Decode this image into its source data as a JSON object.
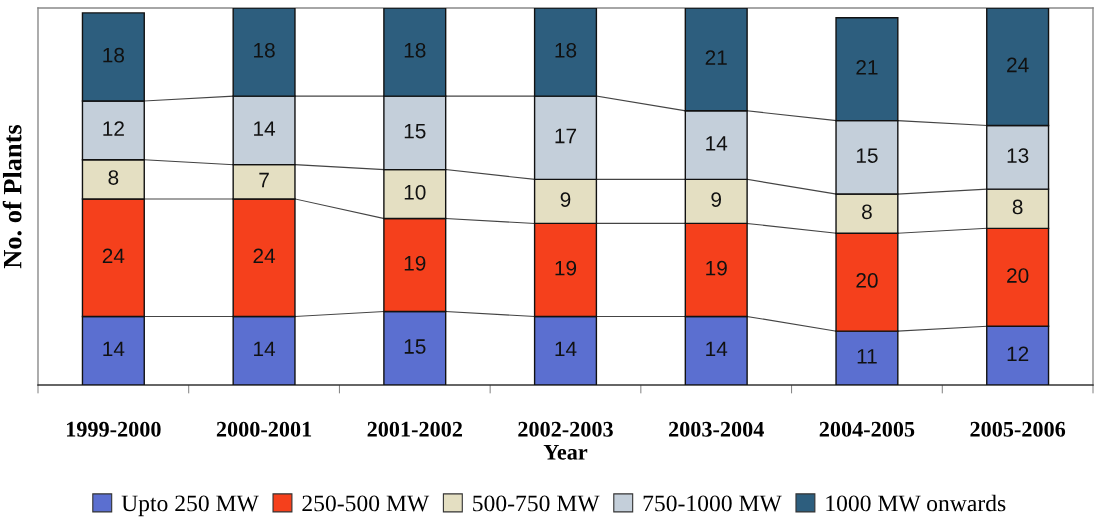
{
  "chart_data": {
    "type": "bar",
    "stacked": true,
    "xlabel": "Year",
    "ylabel": "No. of Plants",
    "categories": [
      "1999-2000",
      "2000-2001",
      "2001-2002",
      "2002-2003",
      "2003-2004",
      "2004-2005",
      "2005-2006"
    ],
    "series": [
      {
        "name": "Upto 250 MW",
        "color": "#5b6fd0",
        "values": [
          14,
          14,
          15,
          14,
          14,
          11,
          12
        ]
      },
      {
        "name": "250-500 MW",
        "color": "#f5401c",
        "values": [
          24,
          24,
          19,
          19,
          19,
          20,
          20
        ]
      },
      {
        "name": "500-750 MW",
        "color": "#e4dfc2",
        "values": [
          8,
          7,
          10,
          9,
          9,
          8,
          8
        ]
      },
      {
        "name": "750-1000 MW",
        "color": "#c4cfda",
        "values": [
          12,
          14,
          15,
          17,
          14,
          15,
          13
        ]
      },
      {
        "name": "1000 MW onwards",
        "color": "#2d5e7e",
        "values": [
          18,
          18,
          18,
          18,
          21,
          21,
          24
        ]
      }
    ],
    "ylim": [
      0,
      77
    ],
    "tick_labels": "x",
    "data_labels": true,
    "legend": "bottom"
  }
}
